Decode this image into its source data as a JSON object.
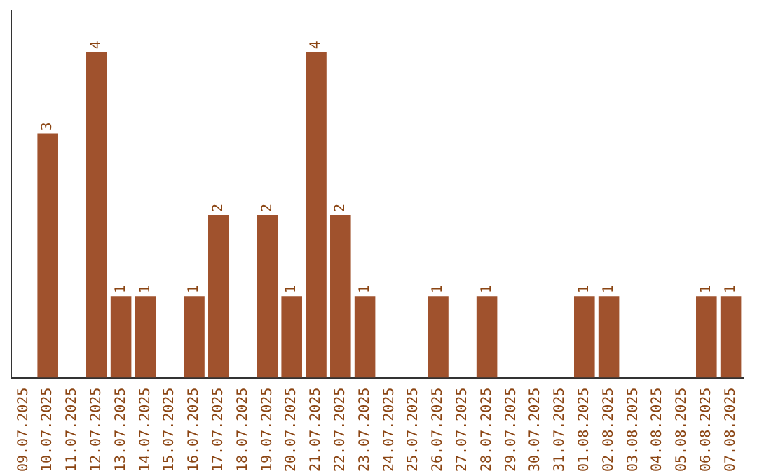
{
  "chart_data": {
    "type": "bar",
    "categories": [
      "09.07.2025",
      "10.07.2025",
      "11.07.2025",
      "12.07.2025",
      "13.07.2025",
      "14.07.2025",
      "15.07.2025",
      "16.07.2025",
      "17.07.2025",
      "18.07.2025",
      "19.07.2025",
      "20.07.2025",
      "21.07.2025",
      "22.07.2025",
      "23.07.2025",
      "24.07.2025",
      "25.07.2025",
      "26.07.2025",
      "27.07.2025",
      "28.07.2025",
      "29.07.2025",
      "30.07.2025",
      "31.07.2025",
      "01.08.2025",
      "02.08.2025",
      "03.08.2025",
      "04.08.2025",
      "05.08.2025",
      "06.08.2025",
      "07.08.2025"
    ],
    "values": [
      0,
      3,
      0,
      4,
      1,
      1,
      0,
      1,
      2,
      0,
      2,
      1,
      4,
      2,
      1,
      0,
      0,
      1,
      0,
      1,
      0,
      0,
      0,
      1,
      1,
      0,
      0,
      0,
      1,
      1
    ],
    "value_labels": [
      null,
      "3",
      null,
      "4",
      "1",
      "1",
      null,
      "1",
      "2",
      null,
      "2",
      "1",
      "4",
      "2",
      "1",
      null,
      null,
      "1",
      null,
      "1",
      null,
      null,
      null,
      "1",
      "1",
      null,
      null,
      null,
      "1",
      "1"
    ],
    "color": "#a0522d",
    "grid": false,
    "legend": false,
    "tick_labels": "x"
  }
}
